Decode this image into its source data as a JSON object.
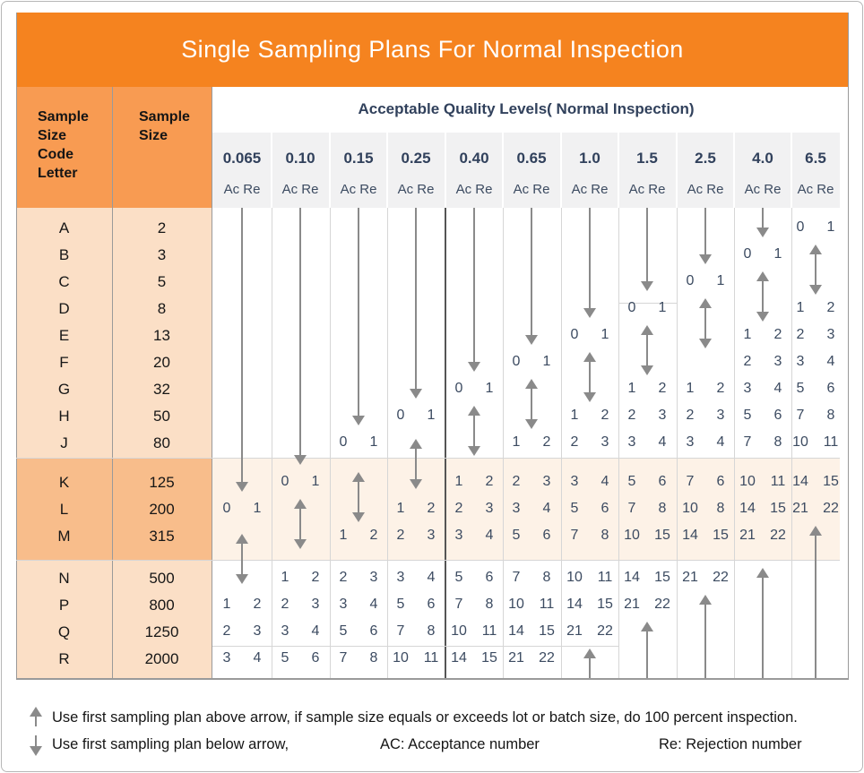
{
  "title": "Single Sampling Plans For Normal Inspection",
  "header": {
    "row_header_1": "Sample\nSize\nCode\nLetter",
    "row_header_2": "Sample\nSize",
    "aql_title": "Acceptable Quality Levels( Normal Inspection)",
    "sub_label": "Ac Re"
  },
  "legend": {
    "up_note": "Use first sampling plan above arrow, if sample size equals or exceeds lot or batch size, do 100 percent inspection.",
    "down_note": "Use first sampling plan below arrow,",
    "ac_note": "AC: Acceptance number",
    "re_note": "Re: Rejection number"
  },
  "colors": {
    "title_bar": "#F5831F",
    "header_cell": "#F89B52",
    "peach_row_block": "#FBDFC6",
    "mid_orange_block": "#F8BD8B",
    "body_tint": "#FDF2E7",
    "strip_gray": "#F1F1F2",
    "navy_text": "#3C4B61",
    "arrow_gray": "#8A8A8A",
    "line_light": "#D6D6D6",
    "line_mid": "#9A9A9A",
    "line_dark": "#555555"
  },
  "chart_data": {
    "type": "table",
    "title": "Single Sampling Plans For Normal Inspection",
    "column_axis_label": "Acceptable Quality Levels( Normal Inspection)",
    "rows": [
      {
        "letter": "A",
        "size": "2",
        "group": 1
      },
      {
        "letter": "B",
        "size": "3",
        "group": 1
      },
      {
        "letter": "C",
        "size": "5",
        "group": 1
      },
      {
        "letter": "D",
        "size": "8",
        "group": 1
      },
      {
        "letter": "E",
        "size": "13",
        "group": 1
      },
      {
        "letter": "F",
        "size": "20",
        "group": 1
      },
      {
        "letter": "G",
        "size": "32",
        "group": 1
      },
      {
        "letter": "H",
        "size": "50",
        "group": 1
      },
      {
        "letter": "J",
        "size": "80",
        "group": 1
      },
      {
        "letter": "K",
        "size": "125",
        "group": 2
      },
      {
        "letter": "L",
        "size": "200",
        "group": 2
      },
      {
        "letter": "M",
        "size": "315",
        "group": 2
      },
      {
        "letter": "N",
        "size": "500",
        "group": 3
      },
      {
        "letter": "P",
        "size": "800",
        "group": 3
      },
      {
        "letter": "Q",
        "size": "1250",
        "group": 3
      },
      {
        "letter": "R",
        "size": "2000",
        "group": 3
      }
    ],
    "columns": [
      {
        "aql": "0.065",
        "sub": "Ac Re",
        "down_arrow": true,
        "zero_row": "L",
        "double_arrow_rows": [
          "M",
          "N"
        ],
        "up_arrow_from": null,
        "values": {
          "L": "0 1",
          "P": "1 2",
          "Q": "2 3",
          "R": "3 4"
        }
      },
      {
        "aql": "0.10",
        "sub": "Ac Re",
        "down_arrow": true,
        "zero_row": "K",
        "double_arrow_rows": [
          "L",
          "M"
        ],
        "up_arrow_from": null,
        "values": {
          "K": "0 1",
          "N": "1 2",
          "P": "2 3",
          "Q": "3 4",
          "R": "5 6"
        }
      },
      {
        "aql": "0.15",
        "sub": "Ac Re",
        "down_arrow": true,
        "zero_row": "J",
        "double_arrow_rows": [
          "K",
          "L"
        ],
        "up_arrow_from": null,
        "values": {
          "J": "0 1",
          "M": "1 2",
          "N": "2 3",
          "P": "3 4",
          "Q": "5 6",
          "R": "7 8"
        }
      },
      {
        "aql": "0.25",
        "sub": "Ac Re",
        "down_arrow": true,
        "zero_row": "H",
        "double_arrow_rows": [
          "J",
          "K"
        ],
        "up_arrow_from": null,
        "values": {
          "H": "0 1",
          "L": "1 2",
          "M": "2 3",
          "N": "3 4",
          "P": "5 6",
          "Q": "7 8",
          "R": "10 11"
        }
      },
      {
        "aql": "0.40",
        "sub": "Ac Re",
        "down_arrow": true,
        "zero_row": "G",
        "double_arrow_rows": [
          "H",
          "J"
        ],
        "up_arrow_from": null,
        "values": {
          "G": "0 1",
          "K": "1 2",
          "L": "2 3",
          "M": "3 4",
          "N": "5 6",
          "P": "7 8",
          "Q": "10 11",
          "R": "14 15"
        }
      },
      {
        "aql": "0.65",
        "sub": "Ac Re",
        "down_arrow": true,
        "zero_row": "F",
        "double_arrow_rows": [
          "G",
          "H"
        ],
        "up_arrow_from": null,
        "values": {
          "F": "0 1",
          "J": "1 2",
          "K": "2 3",
          "L": "3 4",
          "M": "5 6",
          "N": "7 8",
          "P": "10 11",
          "Q": "14 15",
          "R": "21 22"
        }
      },
      {
        "aql": "1.0",
        "sub": "Ac Re",
        "down_arrow": true,
        "zero_row": "E",
        "double_arrow_rows": [
          "F",
          "G"
        ],
        "up_arrow_from": "R",
        "values": {
          "E": "0 1",
          "H": "1 2",
          "J": "2 3",
          "K": "3 4",
          "L": "5 6",
          "M": "7 8",
          "N": "10 11",
          "P": "14 15",
          "Q": "21 22"
        }
      },
      {
        "aql": "1.5",
        "sub": "Ac Re",
        "down_arrow": true,
        "zero_row": "D",
        "double_arrow_rows": [
          "E",
          "F"
        ],
        "up_arrow_from": "Q",
        "values": {
          "D": "0 1",
          "G": "1 2",
          "H": "2 3",
          "J": "3 4",
          "K": "5 6",
          "L": "7 8",
          "M": "10 15",
          "N": "14 15",
          "P": "21 22"
        }
      },
      {
        "aql": "2.5",
        "sub": "Ac Re",
        "down_arrow": true,
        "zero_row": "C",
        "double_arrow_rows": [
          "D",
          "E"
        ],
        "up_arrow_from": "P",
        "values": {
          "C": "0 1",
          "G": "1 2",
          "H": "2 3",
          "J": "3 4",
          "K": "7 6",
          "L": "10 8",
          "M": "14 15",
          "N": "21 22"
        }
      },
      {
        "aql": "4.0",
        "sub": "Ac Re",
        "down_arrow": true,
        "zero_row": "B",
        "double_arrow_rows": [
          "C",
          "D"
        ],
        "up_arrow_from": "N",
        "values": {
          "B": "0 1",
          "E": "1 2",
          "F": "2 3",
          "G": "3 4",
          "H": "5 6",
          "J": "7 8",
          "K": "10 11",
          "L": "14 15",
          "M": "21 22"
        }
      },
      {
        "aql": "6.5",
        "sub": "Ac Re",
        "down_arrow": false,
        "zero_row": "A",
        "double_arrow_rows": [
          "B",
          "C"
        ],
        "up_arrow_from": "M",
        "values": {
          "A": "0 1",
          "D": "1 2",
          "E": "2 3",
          "F": "3 4",
          "G": "5 6",
          "H": "7 8",
          "J": "10 11",
          "K": "14 15",
          "L": "21 22"
        }
      }
    ]
  }
}
